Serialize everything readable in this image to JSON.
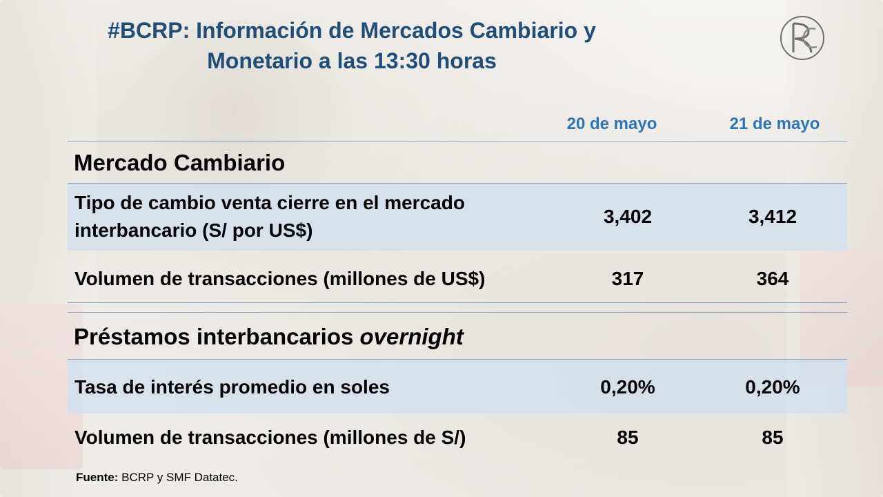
{
  "title": {
    "line1": "#BCRP: Información de Mercados Cambiario y",
    "line2": "Monetario a las 13:30 horas"
  },
  "logo_icon": "bcrp-monogram-icon",
  "columns": [
    "20 de mayo",
    "21 de mayo"
  ],
  "sections": {
    "cambiario": {
      "title": "Mercado Cambiario",
      "rows": [
        {
          "label_line1": "Tipo de cambio venta cierre en el mercado",
          "label_line2": "interbancario (S/ por US$)",
          "values": [
            "3,402",
            "3,412"
          ]
        },
        {
          "label": "Volumen de transacciones (millones de US$)",
          "values": [
            "317",
            "364"
          ]
        }
      ]
    },
    "interbancarios": {
      "title": "Préstamos interbancarios",
      "title_italic": "overnight",
      "rows": [
        {
          "label": "Tasa de interés promedio en soles",
          "values": [
            "0,20%",
            "0,20%"
          ]
        },
        {
          "label": "Volumen de transacciones (millones de S/)",
          "values": [
            "85",
            "85"
          ]
        }
      ]
    }
  },
  "source": {
    "prefix": "Fuente:",
    "text": " BCRP y SMF Datatec."
  },
  "colors": {
    "title": "#1f4e79",
    "column_header": "#2e75b6",
    "row_shade": "#cfdff0"
  }
}
